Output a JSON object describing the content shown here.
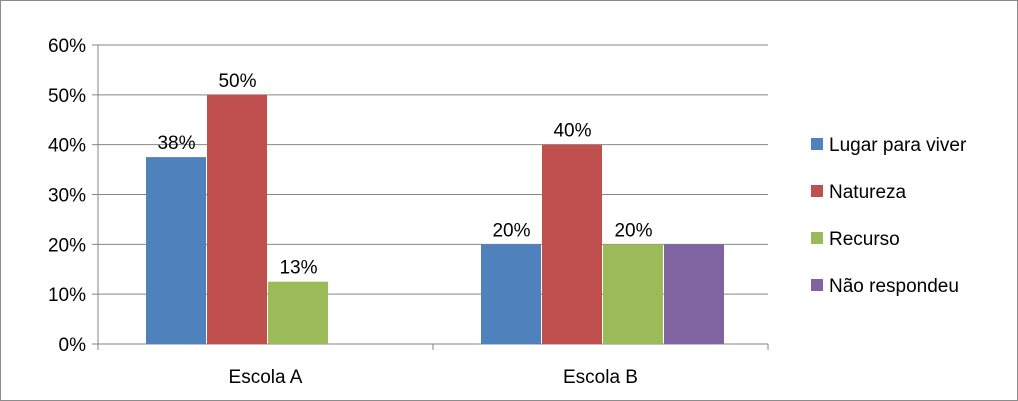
{
  "chart_data": {
    "type": "bar",
    "categories": [
      "Escola A",
      "Escola B"
    ],
    "series": [
      {
        "name": "Lugar para viver",
        "color": "#4f81bd",
        "values": [
          37.5,
          20
        ],
        "labels": [
          "38%",
          "20%"
        ]
      },
      {
        "name": "Natureza",
        "color": "#c0504d",
        "values": [
          50,
          40
        ],
        "labels": [
          "50%",
          "40%"
        ]
      },
      {
        "name": "Recurso",
        "color": "#9bbb59",
        "values": [
          12.5,
          20
        ],
        "labels": [
          "13%",
          "20%"
        ]
      },
      {
        "name": "Não respondeu",
        "color": "#8064a2",
        "values": [
          null,
          20
        ],
        "labels": [
          "",
          ""
        ]
      }
    ],
    "y_ticks": [
      "0%",
      "10%",
      "20%",
      "30%",
      "40%",
      "50%",
      "60%"
    ],
    "ylim": [
      0,
      60
    ],
    "grid": true,
    "legend_position": "right"
  }
}
